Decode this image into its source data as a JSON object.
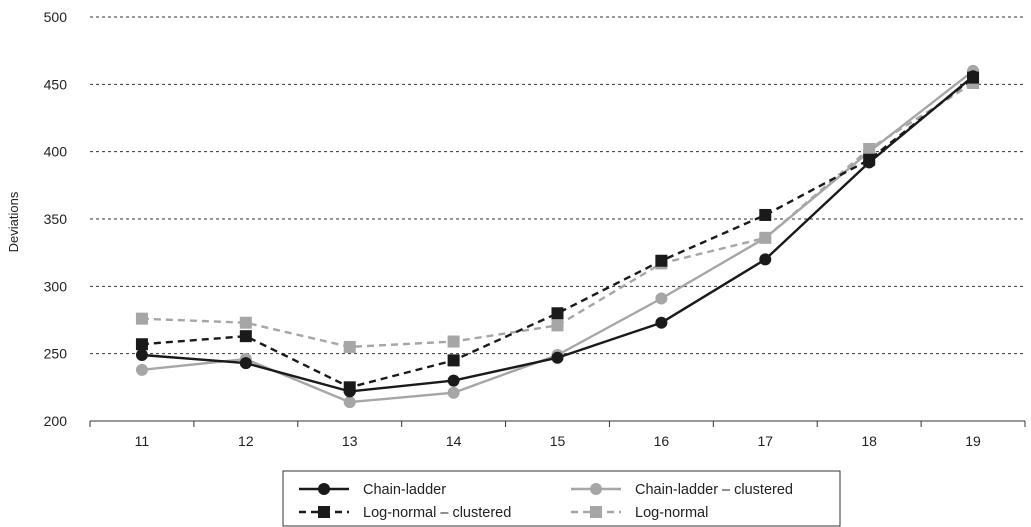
{
  "chart_data": {
    "type": "line",
    "title": "",
    "xlabel": "",
    "ylabel": "Deviations",
    "x": [
      11,
      12,
      13,
      14,
      15,
      16,
      17,
      18,
      19
    ],
    "ylim": [
      200,
      500
    ],
    "yticks": [
      200,
      250,
      300,
      350,
      400,
      450,
      500
    ],
    "grid": true,
    "legend_position": "bottom",
    "series": [
      {
        "name": "Chain-ladder",
        "values": [
          249,
          243,
          222,
          230,
          247,
          273,
          320,
          392,
          456
        ],
        "color": "#1a1a1a",
        "dash": "solid",
        "marker": "circle"
      },
      {
        "name": "Chain-ladder – clustered",
        "values": [
          238,
          246,
          214,
          221,
          249,
          291,
          336,
          400,
          460
        ],
        "color": "#a6a6a6",
        "dash": "solid",
        "marker": "circle"
      },
      {
        "name": "Log-normal – clustered",
        "values": [
          257,
          263,
          225,
          245,
          280,
          319,
          353,
          394,
          455
        ],
        "color": "#1a1a1a",
        "dash": "dashed",
        "marker": "square"
      },
      {
        "name": "Log-normal",
        "values": [
          276,
          273,
          255,
          259,
          271,
          317,
          336,
          402,
          451
        ],
        "color": "#a6a6a6",
        "dash": "dashed",
        "marker": "square"
      }
    ]
  }
}
